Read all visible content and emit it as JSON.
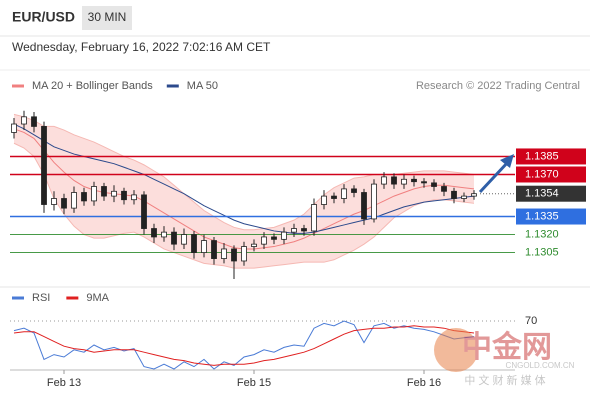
{
  "header": {
    "symbol": "EUR/USD",
    "timeframe": "30 MIN",
    "timestamp": "Wednesday, February 16, 2022 7:02:16 AM CET"
  },
  "watermark": {
    "brand": "中金网",
    "site": "CNGOLD.COM.CN",
    "tagline": "中 文 财 新 媒 体"
  },
  "chart_data": [
    {
      "type": "candlestick",
      "legend": [
        {
          "name": "MA 20 + Bollinger Bands",
          "color": "#f08080"
        },
        {
          "name": "MA 50",
          "color": "#2c4a8c"
        }
      ],
      "credit": "Research © 2022 Trading Central",
      "categories": [
        null,
        null,
        null,
        null,
        null,
        "Feb 13",
        null,
        null,
        null,
        null,
        null,
        null,
        null,
        null,
        null,
        null,
        null,
        null,
        null,
        null,
        null,
        null,
        null,
        null,
        "Feb 15",
        null,
        null,
        null,
        null,
        null,
        null,
        null,
        null,
        null,
        null,
        null,
        null,
        null,
        null,
        null,
        null,
        "Feb 16",
        null,
        null,
        null,
        null,
        null
      ],
      "open": [
        1.1405,
        1.1412,
        1.1418,
        1.141,
        1.1345,
        1.135,
        1.1342,
        1.1355,
        1.1348,
        1.136,
        1.1352,
        1.1356,
        1.1349,
        1.1353,
        1.1325,
        1.1318,
        1.1322,
        1.1312,
        1.132,
        1.1305,
        1.1315,
        1.13,
        1.1308,
        1.1298,
        1.131,
        1.1312,
        1.1318,
        1.1316,
        1.1322,
        1.1325,
        1.1323,
        1.1345,
        1.1352,
        1.135,
        1.1358,
        1.1355,
        1.1333,
        1.1362,
        1.1368,
        1.1362,
        1.1366,
        1.1364,
        1.1363,
        1.136,
        1.1356,
        1.135,
        1.1352
      ],
      "high": [
        1.1417,
        1.1423,
        1.1422,
        1.1414,
        1.1356,
        1.1354,
        1.136,
        1.1359,
        1.1364,
        1.1363,
        1.1361,
        1.1359,
        1.1357,
        1.1356,
        1.1329,
        1.1327,
        1.1326,
        1.1325,
        1.1323,
        1.132,
        1.1318,
        1.1313,
        1.1311,
        1.1314,
        1.1316,
        1.1322,
        1.1321,
        1.1326,
        1.1329,
        1.1328,
        1.135,
        1.1357,
        1.1355,
        1.1362,
        1.1361,
        1.1358,
        1.1366,
        1.1372,
        1.1371,
        1.137,
        1.1369,
        1.1367,
        1.1366,
        1.1363,
        1.1359,
        1.1355,
        1.1357
      ],
      "low": [
        1.14,
        1.1407,
        1.1405,
        1.1338,
        1.134,
        1.1337,
        1.1338,
        1.1344,
        1.1344,
        1.1348,
        1.1347,
        1.1345,
        1.1345,
        1.132,
        1.1313,
        1.1314,
        1.1307,
        1.1308,
        1.13,
        1.1301,
        1.1295,
        1.1296,
        1.1283,
        1.1294,
        1.1306,
        1.1308,
        1.1312,
        1.1312,
        1.1318,
        1.1319,
        1.1319,
        1.1341,
        1.1346,
        1.1346,
        1.1351,
        1.1328,
        1.133,
        1.1358,
        1.1358,
        1.1358,
        1.136,
        1.1359,
        1.1356,
        1.1352,
        1.1346,
        1.1347,
        1.1349
      ],
      "close": [
        1.1412,
        1.1418,
        1.141,
        1.1345,
        1.135,
        1.1342,
        1.1355,
        1.1348,
        1.136,
        1.1352,
        1.1356,
        1.1349,
        1.1353,
        1.1325,
        1.1318,
        1.1322,
        1.1312,
        1.132,
        1.1305,
        1.1315,
        1.13,
        1.1308,
        1.1298,
        1.131,
        1.1312,
        1.1318,
        1.1316,
        1.1322,
        1.1325,
        1.1323,
        1.1345,
        1.1352,
        1.135,
        1.1358,
        1.1355,
        1.1333,
        1.1362,
        1.1368,
        1.1362,
        1.1366,
        1.1364,
        1.1363,
        1.136,
        1.1356,
        1.135,
        1.1352,
        1.1354
      ],
      "ma20": [
        1.1408,
        1.1405,
        1.14,
        1.139,
        1.138,
        1.1372,
        1.1365,
        1.136,
        1.1357,
        1.1355,
        1.1354,
        1.1353,
        1.1352,
        1.1348,
        1.1343,
        1.1338,
        1.1333,
        1.1328,
        1.1323,
        1.1318,
        1.1315,
        1.1312,
        1.1309,
        1.1308,
        1.1308,
        1.1309,
        1.131,
        1.1312,
        1.1314,
        1.1317,
        1.1321,
        1.1325,
        1.1329,
        1.1333,
        1.1337,
        1.134,
        1.1344,
        1.1348,
        1.1352,
        1.1355,
        1.1358,
        1.136,
        1.1361,
        1.1361,
        1.136,
        1.1359,
        1.1358
      ],
      "ma50": [
        1.1412,
        1.1408,
        1.1403,
        1.1398,
        1.1393,
        1.139,
        1.1387,
        1.1385,
        1.1383,
        1.1381,
        1.1379,
        1.1376,
        1.1373,
        1.137,
        1.1366,
        1.1362,
        1.1358,
        1.1354,
        1.1349,
        1.1344,
        1.134,
        1.1336,
        1.1332,
        1.1329,
        1.1327,
        1.1325,
        1.1323,
        1.1322,
        1.1321,
        1.1321,
        1.1322,
        1.1324,
        1.1326,
        1.1328,
        1.133,
        1.1332,
        1.1334,
        1.1337,
        1.134,
        1.1343,
        1.1345,
        1.1347,
        1.1348,
        1.1349,
        1.135,
        1.1351,
        1.1352
      ],
      "upper": [
        1.142,
        1.1418,
        1.1415,
        1.141,
        1.141,
        1.1407,
        1.1403,
        1.14,
        1.1397,
        1.1393,
        1.1389,
        1.1385,
        1.1382,
        1.1378,
        1.1373,
        1.1368,
        1.1361,
        1.1354,
        1.1347,
        1.134,
        1.1335,
        1.133,
        1.1326,
        1.1324,
        1.1324,
        1.1325,
        1.1326,
        1.1329,
        1.1332,
        1.1337,
        1.1345,
        1.1353,
        1.1359,
        1.1363,
        1.1367,
        1.1368,
        1.137,
        1.137,
        1.137,
        1.1371,
        1.1372,
        1.1373,
        1.1373,
        1.1373,
        1.1372,
        1.1371,
        1.137
      ],
      "lower": [
        1.1396,
        1.1392,
        1.1385,
        1.137,
        1.135,
        1.1337,
        1.1327,
        1.132,
        1.1317,
        1.1317,
        1.1319,
        1.1321,
        1.1322,
        1.1318,
        1.1313,
        1.1308,
        1.1305,
        1.1302,
        1.1299,
        1.1296,
        1.1295,
        1.1294,
        1.1292,
        1.1292,
        1.1292,
        1.1293,
        1.1294,
        1.1295,
        1.1296,
        1.1297,
        1.1297,
        1.1297,
        1.1299,
        1.1303,
        1.1307,
        1.1312,
        1.1318,
        1.1326,
        1.1334,
        1.1339,
        1.1344,
        1.1347,
        1.1349,
        1.1349,
        1.1348,
        1.1347,
        1.1346
      ],
      "up_color": "#ffffff",
      "down_color": "#222222",
      "band_color": "#fbd6d3",
      "ylim": [
        1.1278,
        1.1432
      ],
      "levels": [
        {
          "value": 1.1385,
          "label": "1.1385",
          "color": "#d0021b",
          "style": "box"
        },
        {
          "value": 1.137,
          "label": "1.1370",
          "color": "#d0021b",
          "style": "box"
        },
        {
          "value": 1.1354,
          "label": "1.1354",
          "color": "#333333",
          "style": "current"
        },
        {
          "value": 1.1335,
          "label": "1.1335",
          "color": "#2f6fe0",
          "style": "box"
        },
        {
          "value": 1.132,
          "label": "1.1320",
          "color": "#2e8b2e",
          "style": "text"
        },
        {
          "value": 1.1305,
          "label": "1.1305",
          "color": "#2e8b2e",
          "style": "text"
        }
      ]
    },
    {
      "type": "line",
      "series": [
        {
          "name": "RSI",
          "color": "#4a7bd6",
          "values": [
            62,
            64,
            60,
            38,
            42,
            40,
            46,
            44,
            50,
            46,
            48,
            45,
            47,
            32,
            30,
            34,
            30,
            36,
            32,
            38,
            30,
            36,
            33,
            40,
            42,
            46,
            44,
            48,
            50,
            49,
            64,
            68,
            66,
            70,
            67,
            52,
            66,
            68,
            64,
            66,
            64,
            63,
            61,
            58,
            55,
            56,
            57
          ]
        },
        {
          "name": "9MA",
          "color": "#e02020",
          "values": [
            60,
            61,
            61,
            57,
            53,
            49,
            47,
            46,
            44,
            45,
            46,
            46,
            46,
            44,
            42,
            40,
            38,
            37,
            35,
            34,
            33,
            34,
            34,
            34,
            35,
            37,
            38,
            40,
            42,
            44,
            47,
            51,
            55,
            59,
            62,
            63,
            64,
            64,
            65,
            65,
            66,
            65,
            65,
            64,
            62,
            61,
            60
          ]
        }
      ],
      "ylim": [
        25,
        85
      ],
      "yticks": [
        70
      ]
    }
  ]
}
